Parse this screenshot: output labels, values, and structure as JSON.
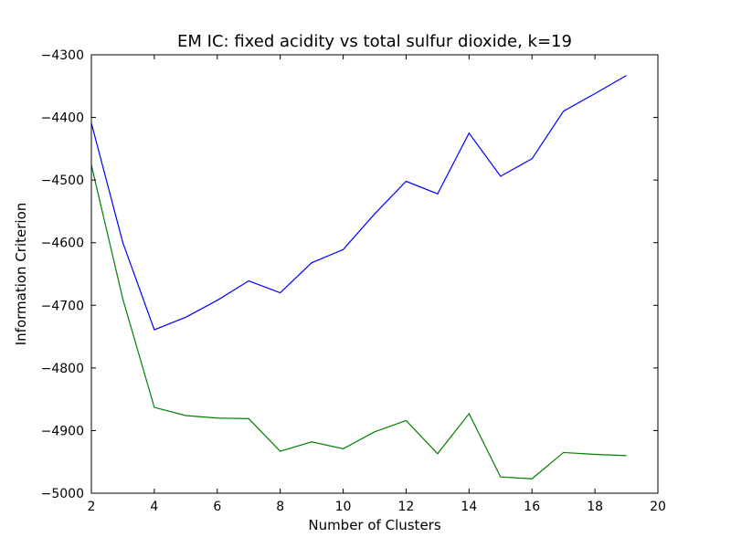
{
  "chart_data": {
    "type": "line",
    "title": "EM IC: fixed acidity vs total sulfur dioxide, k=19",
    "xlabel": "Number of Clusters",
    "ylabel": "Information Criterion",
    "xlim": [
      2,
      20
    ],
    "ylim": [
      -5000,
      -4300
    ],
    "xticks": [
      2,
      4,
      6,
      8,
      10,
      12,
      14,
      16,
      18,
      20
    ],
    "yticks": [
      -5000,
      -4900,
      -4800,
      -4700,
      -4600,
      -4500,
      -4400,
      -4300
    ],
    "xtick_labels": [
      "2",
      "4",
      "6",
      "8",
      "10",
      "12",
      "14",
      "16",
      "18",
      "20"
    ],
    "ytick_labels": [
      "−5000",
      "−4900",
      "−4800",
      "−4700",
      "−4600",
      "−4500",
      "−4400",
      "−4300"
    ],
    "grid": false,
    "legend": "none",
    "x": [
      2,
      3,
      4,
      5,
      6,
      7,
      8,
      9,
      10,
      11,
      12,
      13,
      14,
      15,
      16,
      17,
      18,
      19
    ],
    "series": [
      {
        "color": "#0000ff",
        "values": [
          -4409,
          -4600,
          -4739,
          -4719,
          -4692,
          -4661,
          -4680,
          -4632,
          -4611,
          -4554,
          -4502,
          -4522,
          -4425,
          -4494,
          -4466,
          -4390,
          -4362,
          -4333
        ]
      },
      {
        "color": "#008000",
        "values": [
          -4476,
          -4690,
          -4863,
          -4876,
          -4880,
          -4881,
          -4933,
          -4918,
          -4929,
          -4902,
          -4884,
          -4937,
          -4873,
          -4974,
          -4977,
          -4935,
          -4938,
          -4940
        ]
      }
    ]
  }
}
